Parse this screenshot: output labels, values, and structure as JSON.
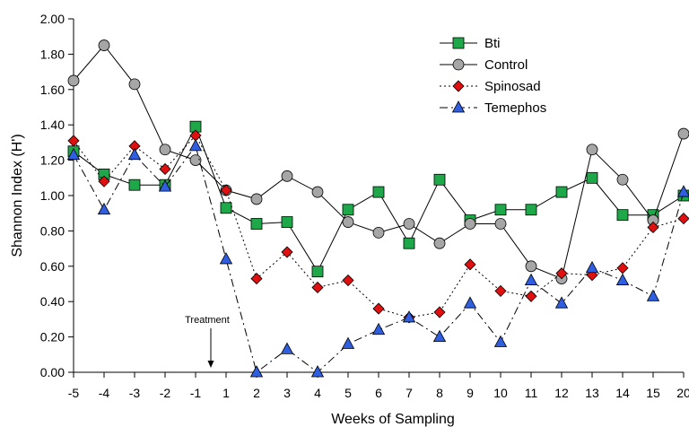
{
  "chart_data": {
    "type": "line",
    "xlabel": "Weeks of Sampling",
    "ylabel": "Shannon Index (H')",
    "ylim": [
      0,
      2
    ],
    "yticks": [
      "0.00",
      "0.20",
      "0.40",
      "0.60",
      "0.80",
      "1.00",
      "1.20",
      "1.40",
      "1.60",
      "1.80",
      "2.00"
    ],
    "categories": [
      "-5",
      "-4",
      "-3",
      "-2",
      "-1",
      "1",
      "2",
      "3",
      "4",
      "5",
      "6",
      "7",
      "8",
      "9",
      "10",
      "11",
      "12",
      "13",
      "14",
      "15",
      "20"
    ],
    "legend_position": "top-right",
    "grid": false,
    "annotation": {
      "text": "Treatment",
      "x_between": [
        "-1",
        "1"
      ]
    },
    "series": [
      {
        "name": "Bti",
        "marker": "square",
        "color": "#1fa84a",
        "line": "solid",
        "values": [
          1.25,
          1.12,
          1.06,
          1.06,
          1.39,
          0.93,
          0.84,
          0.85,
          0.57,
          0.92,
          1.02,
          0.73,
          1.09,
          0.86,
          0.92,
          0.92,
          1.02,
          1.1,
          0.89,
          0.89,
          1.0
        ]
      },
      {
        "name": "Control",
        "marker": "circle",
        "color": "#a6a6a6",
        "line": "solid",
        "values": [
          1.65,
          1.85,
          1.63,
          1.26,
          1.2,
          1.03,
          0.98,
          1.11,
          1.02,
          0.85,
          0.79,
          0.84,
          0.73,
          0.84,
          0.84,
          0.6,
          0.53,
          1.26,
          1.09,
          0.86,
          1.35
        ]
      },
      {
        "name": "Spinosad",
        "marker": "diamond",
        "color": "#e01010",
        "line": "dotted",
        "values": [
          1.31,
          1.08,
          1.28,
          1.15,
          1.34,
          1.03,
          0.53,
          0.68,
          0.48,
          0.52,
          0.36,
          0.31,
          0.34,
          0.61,
          0.46,
          0.43,
          0.56,
          0.55,
          0.59,
          0.82,
          0.87
        ]
      },
      {
        "name": "Temephos",
        "marker": "triangle",
        "color": "#2f5fe0",
        "line": "dashdot",
        "values": [
          1.23,
          0.92,
          1.23,
          1.05,
          1.28,
          0.64,
          0.0,
          0.13,
          0.0,
          0.16,
          0.24,
          0.31,
          0.2,
          0.39,
          0.17,
          0.52,
          0.39,
          0.59,
          0.52,
          0.43,
          1.02
        ]
      }
    ]
  }
}
